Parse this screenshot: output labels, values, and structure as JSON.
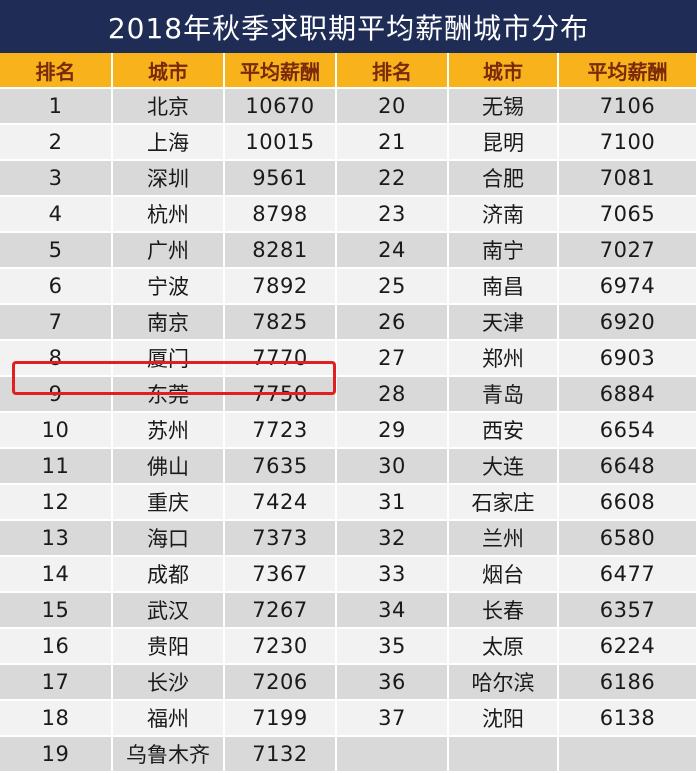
{
  "title": "2018年秋季求职期平均薪酬城市分布",
  "headers": [
    "排名",
    "城市",
    "平均薪酬",
    "排名",
    "城市",
    "平均薪酬"
  ],
  "rows": [
    [
      "1",
      "北京",
      "10670",
      "20",
      "无锡",
      "7106"
    ],
    [
      "2",
      "上海",
      "10015",
      "21",
      "昆明",
      "7100"
    ],
    [
      "3",
      "深圳",
      "9561",
      "22",
      "合肥",
      "7081"
    ],
    [
      "4",
      "杭州",
      "8798",
      "23",
      "济南",
      "7065"
    ],
    [
      "5",
      "广州",
      "8281",
      "24",
      "南宁",
      "7027"
    ],
    [
      "6",
      "宁波",
      "7892",
      "25",
      "南昌",
      "6974"
    ],
    [
      "7",
      "南京",
      "7825",
      "26",
      "天津",
      "6920"
    ],
    [
      "8",
      "厦门",
      "7770",
      "27",
      "郑州",
      "6903"
    ],
    [
      "9",
      "东莞",
      "7750",
      "28",
      "青岛",
      "6884"
    ],
    [
      "10",
      "苏州",
      "7723",
      "29",
      "西安",
      "6654"
    ],
    [
      "11",
      "佛山",
      "7635",
      "30",
      "大连",
      "6648"
    ],
    [
      "12",
      "重庆",
      "7424",
      "31",
      "石家庄",
      "6608"
    ],
    [
      "13",
      "海口",
      "7373",
      "32",
      "兰州",
      "6580"
    ],
    [
      "14",
      "成都",
      "7367",
      "33",
      "烟台",
      "6477"
    ],
    [
      "15",
      "武汉",
      "7267",
      "34",
      "长春",
      "6357"
    ],
    [
      "16",
      "贵阳",
      "7230",
      "35",
      "太原",
      "6224"
    ],
    [
      "17",
      "长沙",
      "7206",
      "36",
      "哈尔滨",
      "6186"
    ],
    [
      "18",
      "福州",
      "7199",
      "37",
      "沈阳",
      "6138"
    ],
    [
      "19",
      "乌鲁木齐",
      "7132",
      "",
      "",
      ""
    ]
  ],
  "highlight_row": 8,
  "colors": {
    "title_bg": "#1f2d56",
    "header_bg": "#f7b21c",
    "header_text": "#7a2a0b",
    "row_odd": "#d9d9d9",
    "row_even": "#f2f2f2",
    "highlight_border": "#e02020"
  }
}
